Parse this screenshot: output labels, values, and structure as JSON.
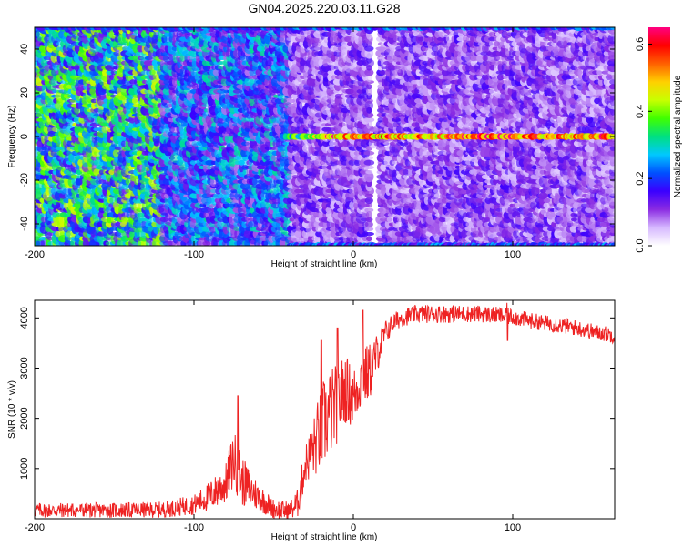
{
  "figure": {
    "title": "GN04.2025.220.03.11.G28"
  },
  "chart_data": [
    {
      "type": "heatmap",
      "title": "GN04.2025.220.03.11.G28",
      "xlabel": "Height of straight line (km)",
      "ylabel": "Frequency (Hz)",
      "xlim": [
        -200,
        164
      ],
      "ylim": [
        -50,
        50
      ],
      "xticks": [
        -200,
        -100,
        0,
        100
      ],
      "xtick_labels": [
        "-200",
        "-100",
        "0",
        "100"
      ],
      "yticks": [
        -40,
        -20,
        0,
        20,
        40
      ],
      "ytick_labels": [
        "-40",
        "-20",
        "0",
        "20",
        "40"
      ],
      "colorbar": {
        "label": "Normalized spectral amplitude",
        "range": [
          0,
          0.65
        ],
        "ticks": [
          0,
          0.2,
          0.4,
          0.6
        ],
        "tick_labels": [
          "0.0",
          "0.2",
          "0.4",
          "0.6"
        ],
        "colormap": [
          "#ffffff",
          "#d6b8ff",
          "#8a2be2",
          "#3a00ff",
          "#0050ff",
          "#00c8ff",
          "#00e080",
          "#40ff00",
          "#c8ff00",
          "#ffd000",
          "#ff6000",
          "#ff0000",
          "#ff0080"
        ]
      },
      "features": [
        {
          "name": "main-line",
          "frequency": 0,
          "x_range": [
            -45,
            164
          ],
          "peak_amplitude": 0.6
        },
        {
          "name": "upper-aliased-line",
          "frequency": 50,
          "x_range": [
            -210,
            164
          ]
        },
        {
          "name": "lower-aliased-line",
          "frequency": -50,
          "x_range": [
            -40,
            164
          ]
        },
        {
          "name": "noise-stripe",
          "x": 14
        }
      ],
      "grid": false
    },
    {
      "type": "line",
      "xlabel": "Height of straight line (km)",
      "ylabel": "SNR (10 * v/v)",
      "xlim": [
        -200,
        164
      ],
      "ylim": [
        0,
        4350
      ],
      "xticks": [
        -200,
        -100,
        0,
        100
      ],
      "xtick_labels": [
        "-200",
        "-100",
        "0",
        "100"
      ],
      "yticks": [
        1000,
        2000,
        3000,
        4000
      ],
      "ytick_labels": [
        "1000",
        "2000",
        "3000",
        "4000"
      ],
      "color": "#ee2222",
      "x": [
        -200,
        -150,
        -120,
        -100,
        -90,
        -80,
        -75,
        -70,
        -60,
        -50,
        -40,
        -35,
        -30,
        -25,
        -20,
        -15,
        -10,
        -5,
        0,
        5,
        10,
        15,
        20,
        25,
        30,
        40,
        50,
        60,
        70,
        80,
        90,
        100,
        110,
        120,
        130,
        140,
        150,
        164
      ],
      "y": [
        170,
        170,
        180,
        280,
        450,
        700,
        1200,
        750,
        450,
        200,
        150,
        300,
        1100,
        1400,
        1800,
        2100,
        2300,
        2600,
        2400,
        2800,
        2900,
        3300,
        3700,
        3900,
        4000,
        4080,
        4080,
        4080,
        4080,
        4080,
        4050,
        4020,
        3950,
        3900,
        3850,
        3800,
        3730,
        3650
      ],
      "noise_amplitude": [
        150,
        150,
        160,
        200,
        300,
        400,
        600,
        500,
        300,
        200,
        200,
        300,
        400,
        600,
        900,
        900,
        800,
        700,
        600,
        600,
        600,
        400,
        250,
        200,
        180,
        180,
        180,
        180,
        170,
        170,
        170,
        170,
        160,
        160,
        160,
        160,
        160,
        160
      ],
      "spikes": [
        {
          "x": -72.5,
          "y": 2450
        },
        {
          "x": -40,
          "y": 100
        },
        {
          "x": -20,
          "y": 3550
        },
        {
          "x": -10,
          "y": 3800
        },
        {
          "x": 6,
          "y": 4150
        },
        {
          "x": 96.5,
          "y": 4300
        },
        {
          "x": 96.8,
          "y": 3550
        }
      ],
      "grid": false
    }
  ]
}
